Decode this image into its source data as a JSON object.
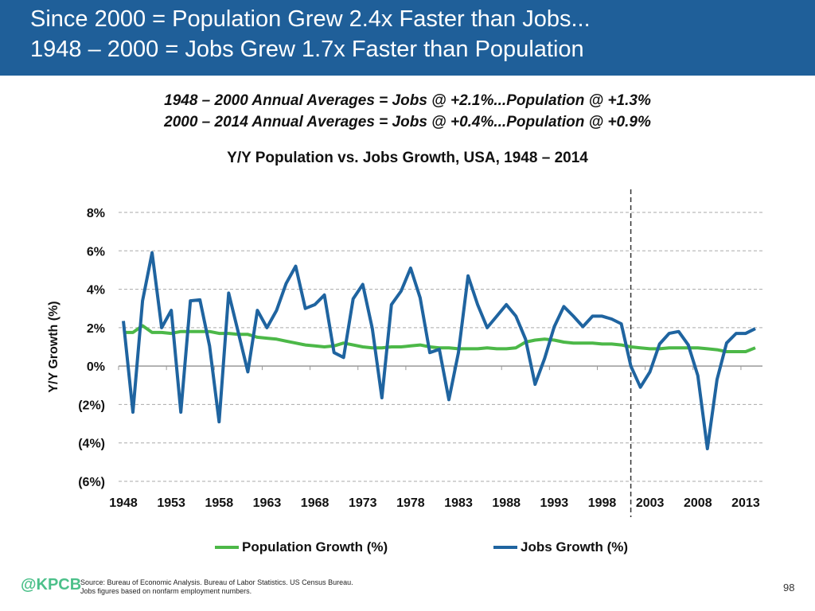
{
  "header": {
    "line1": "Since 2000 = Population Grew 2.4x Faster than Jobs...",
    "line2": "1948 – 2000 = Jobs Grew 1.7x Faster than Population"
  },
  "subtitle": {
    "line1": "1948 – 2000 Annual Averages = Jobs @ +2.1%...Population @ +1.3%",
    "line2": "2000 – 2014 Annual Averages = Jobs @ +0.4%...Population @ +0.9%"
  },
  "footer": {
    "logo": "@KPCB",
    "source1": "Source: Bureau of Economic Analysis. Bureau of Labor Statistics. US Census Bureau.",
    "source2": "Jobs figures based on nonfarm employment numbers.",
    "page": "98"
  },
  "chart_data": {
    "type": "line",
    "title": "Y/Y Population vs. Jobs Growth, USA, 1948 – 2014",
    "xlabel": "",
    "ylabel": "Y/Y Growth (%)",
    "x_start": 1948,
    "x_end": 2014,
    "xticks": [
      "1948",
      "1953",
      "1958",
      "1963",
      "1968",
      "1973",
      "1978",
      "1983",
      "1988",
      "1993",
      "1998",
      "2003",
      "2008",
      "2013"
    ],
    "yticks": [
      {
        "v": 8,
        "label": "8%"
      },
      {
        "v": 6,
        "label": "6%"
      },
      {
        "v": 4,
        "label": "4%"
      },
      {
        "v": 2,
        "label": "2%"
      },
      {
        "v": 0,
        "label": "0%"
      },
      {
        "v": -2,
        "label": "(2%)"
      },
      {
        "v": -4,
        "label": "(4%)"
      },
      {
        "v": -6,
        "label": "(6%)"
      }
    ],
    "ylim": [
      -6,
      8
    ],
    "grid": true,
    "divider_year": 2001,
    "legend_position": "bottom",
    "series": [
      {
        "name": "Population Growth (%)",
        "color": "#4cb848",
        "values": [
          1.75,
          1.75,
          2.1,
          1.75,
          1.75,
          1.7,
          1.8,
          1.8,
          1.8,
          1.8,
          1.7,
          1.7,
          1.65,
          1.65,
          1.5,
          1.45,
          1.4,
          1.3,
          1.2,
          1.1,
          1.05,
          1.0,
          1.05,
          1.2,
          1.1,
          1.0,
          0.95,
          0.95,
          1.0,
          1.0,
          1.05,
          1.1,
          1.0,
          0.95,
          0.95,
          0.9,
          0.9,
          0.9,
          0.95,
          0.9,
          0.9,
          0.95,
          1.25,
          1.35,
          1.4,
          1.35,
          1.25,
          1.2,
          1.2,
          1.2,
          1.15,
          1.15,
          1.1,
          1.0,
          0.95,
          0.9,
          0.9,
          0.95,
          0.95,
          0.95,
          0.95,
          0.9,
          0.85,
          0.75,
          0.75,
          0.75,
          0.95
        ]
      },
      {
        "name": "Jobs Growth (%)",
        "color": "#1f64a0",
        "values": [
          2.35,
          -2.4,
          3.4,
          5.9,
          2.0,
          2.9,
          -2.4,
          3.4,
          3.45,
          1.05,
          -2.9,
          3.8,
          1.75,
          -0.3,
          2.9,
          2.0,
          2.9,
          4.3,
          5.2,
          3.0,
          3.2,
          3.7,
          0.7,
          0.45,
          3.5,
          4.25,
          1.95,
          -1.65,
          3.2,
          3.9,
          5.1,
          3.55,
          0.7,
          0.87,
          -1.75,
          0.7,
          4.7,
          3.2,
          2.0,
          2.6,
          3.2,
          2.6,
          1.4,
          -0.95,
          0.4,
          2.05,
          3.1,
          2.6,
          2.05,
          2.6,
          2.6,
          2.45,
          2.2,
          0.0,
          -1.1,
          -0.3,
          1.15,
          1.7,
          1.8,
          1.1,
          -0.5,
          -4.3,
          -0.7,
          1.2,
          1.7,
          1.7,
          1.95
        ]
      }
    ]
  }
}
